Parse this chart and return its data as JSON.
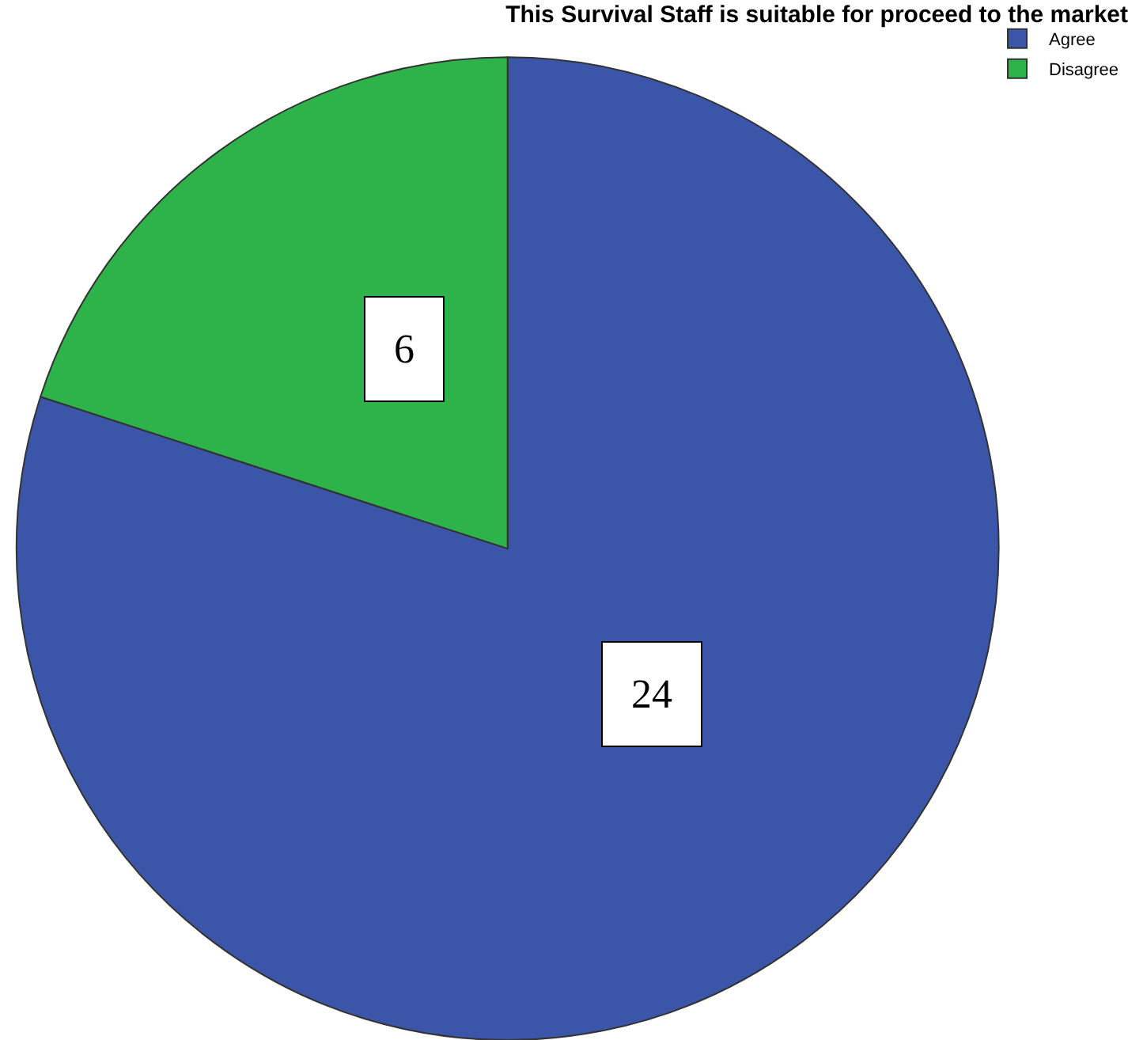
{
  "chart_data": {
    "type": "pie",
    "title": "This Survival Staff is suitable for proceed to the market",
    "categories": [
      "Agree",
      "Disagree"
    ],
    "values": [
      24,
      6
    ],
    "colors": [
      "#3b56a8",
      "#2db34a"
    ],
    "data_labels": true,
    "legend": "top right"
  }
}
